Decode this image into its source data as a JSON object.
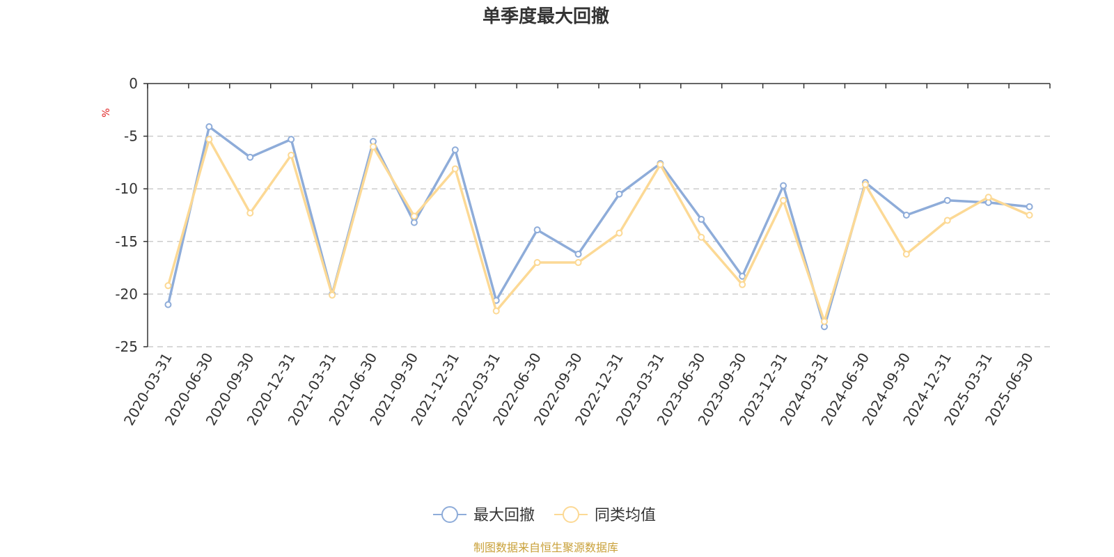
{
  "chart_data": {
    "type": "line",
    "title": "单季度最大回撤",
    "ylabel": "%",
    "ylim": [
      -25,
      0
    ],
    "yticks": [
      0,
      -5,
      -10,
      -15,
      -20,
      -25
    ],
    "grid": true,
    "legend_position": "bottom",
    "categories": [
      "2020-03-31",
      "2020-06-30",
      "2020-09-30",
      "2020-12-31",
      "2021-03-31",
      "2021-06-30",
      "2021-09-30",
      "2021-12-31",
      "2022-03-31",
      "2022-06-30",
      "2022-09-30",
      "2022-12-31",
      "2023-03-31",
      "2023-06-30",
      "2023-09-30",
      "2023-12-31",
      "2024-03-31",
      "2024-06-30",
      "2024-09-30",
      "2024-12-31",
      "2025-03-31",
      "2025-06-30"
    ],
    "series": [
      {
        "name": "最大回撤",
        "color": "#8eacd9",
        "values": [
          -21.0,
          -4.1,
          -7.0,
          -5.3,
          -20.0,
          -5.5,
          -13.2,
          -6.3,
          -20.6,
          -13.9,
          -16.2,
          -10.5,
          -7.6,
          -12.9,
          -18.3,
          -9.7,
          -23.1,
          -9.4,
          -12.5,
          -11.1,
          -11.3,
          -11.7
        ]
      },
      {
        "name": "同类均值",
        "color": "#fcd995",
        "values": [
          -19.2,
          -5.3,
          -12.3,
          -6.8,
          -20.1,
          -6.0,
          -12.6,
          -8.1,
          -21.6,
          -17.0,
          -17.0,
          -14.2,
          -7.7,
          -14.6,
          -19.1,
          -11.1,
          -22.6,
          -9.6,
          -16.2,
          -13.0,
          -10.8,
          -12.5
        ]
      }
    ],
    "source_note": "制图数据来自恒生聚源数据库",
    "colors": {
      "axis": "#333333",
      "grid": "#cccccc",
      "unit": "#e02020",
      "source": "#c9a13a"
    }
  }
}
